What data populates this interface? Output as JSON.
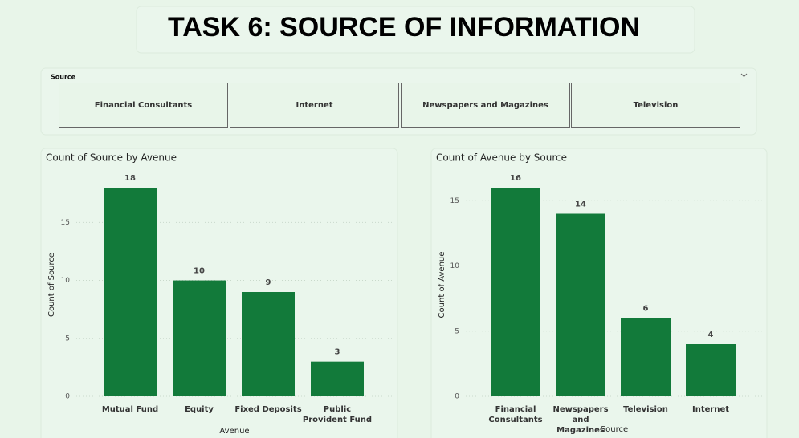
{
  "title": "TASK 6: SOURCE OF INFORMATION",
  "slicer": {
    "label": "Source",
    "options": [
      "Financial Consultants",
      "Internet",
      "Newspapers and Magazines",
      "Television"
    ]
  },
  "chart_data": [
    {
      "type": "bar",
      "title": "Count of Source by Avenue",
      "x_label": "Avenue",
      "y_label": "Count of Source",
      "categories": [
        "Mutual Fund",
        "Equity",
        "Fixed Deposits",
        "Public Provident Fund"
      ],
      "values": [
        18,
        10,
        9,
        3
      ],
      "color": "#127a3a",
      "ylim": [
        0,
        18
      ],
      "yticks": [
        0,
        5,
        10,
        15
      ],
      "grid": true,
      "data_labels": true
    },
    {
      "type": "bar",
      "title": "Count of Avenue by Source",
      "x_label": "Source",
      "y_label": "Count of Avenue",
      "categories": [
        "Financial Consultants",
        "Newspapers and Magazines",
        "Television",
        "Internet"
      ],
      "values": [
        16,
        14,
        6,
        4
      ],
      "color": "#127a3a",
      "ylim": [
        0,
        16
      ],
      "yticks": [
        0,
        5,
        10,
        15
      ],
      "grid": true,
      "data_labels": true
    }
  ]
}
